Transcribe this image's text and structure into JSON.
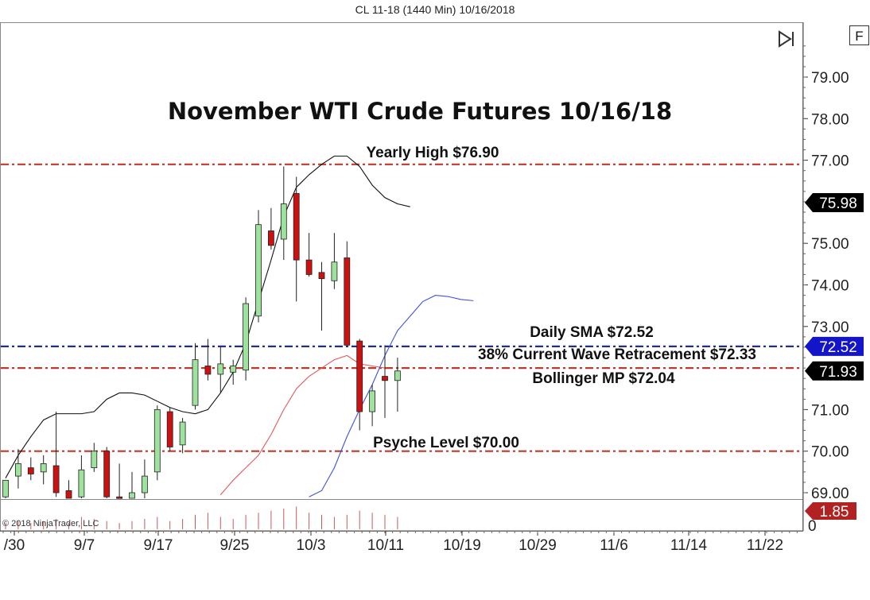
{
  "header": {
    "instrument_title": "CL 11-18 (1440 Min)  10/16/2018"
  },
  "toolbar": {
    "f_button": "F",
    "scroll_end_icon": "skip-to-end-icon"
  },
  "copyright": "© 2018 NinjaTrader, LLC",
  "volume_badge": {
    "text": "1.85",
    "color": "#b22222"
  },
  "volume_axis_label": "0",
  "chart_data": {
    "type": "candlestick",
    "title": "November WTI Crude Futures 10/16/18",
    "ylim": [
      68.8,
      80.2
    ],
    "y_ticks": [
      "79.00",
      "78.00",
      "77.00",
      "75.00",
      "74.00",
      "73.00",
      "71.00",
      "70.00",
      "69.00"
    ],
    "y_tick_values": [
      79,
      78,
      77,
      75,
      74,
      73,
      71,
      70,
      69
    ],
    "x_ticks": [
      "/30",
      "9/7",
      "9/17",
      "9/25",
      "10/3",
      "10/11",
      "10/19",
      "10/29",
      "11/6",
      "11/14",
      "11/22"
    ],
    "candles": [
      {
        "date": "8/30",
        "o": 68.9,
        "h": 69.3,
        "l": 68.6,
        "c": 69.3
      },
      {
        "date": "8/31",
        "o": 69.4,
        "h": 70.05,
        "l": 69.1,
        "c": 69.7
      },
      {
        "date": "9/3",
        "o": 69.6,
        "h": 69.85,
        "l": 69.3,
        "c": 69.45
      },
      {
        "date": "9/4",
        "o": 69.5,
        "h": 69.9,
        "l": 69.2,
        "c": 69.7
      },
      {
        "date": "9/5",
        "o": 69.65,
        "h": 70.95,
        "l": 68.9,
        "c": 69.0
      },
      {
        "date": "9/6",
        "o": 69.05,
        "h": 69.3,
        "l": 68.6,
        "c": 68.75
      },
      {
        "date": "9/10",
        "o": 68.9,
        "h": 69.9,
        "l": 68.8,
        "c": 69.55
      },
      {
        "date": "9/11",
        "o": 69.6,
        "h": 70.2,
        "l": 69.5,
        "c": 70.0
      },
      {
        "date": "9/12",
        "o": 70.0,
        "h": 70.1,
        "l": 68.6,
        "c": 68.9
      },
      {
        "date": "9/13",
        "o": 68.9,
        "h": 69.7,
        "l": 68.5,
        "c": 68.8
      },
      {
        "date": "9/14",
        "o": 68.8,
        "h": 69.5,
        "l": 68.6,
        "c": 69.0
      },
      {
        "date": "9/17",
        "o": 69.0,
        "h": 69.8,
        "l": 68.6,
        "c": 69.4
      },
      {
        "date": "9/18",
        "o": 69.5,
        "h": 71.1,
        "l": 69.3,
        "c": 71.0
      },
      {
        "date": "9/19",
        "o": 70.95,
        "h": 71.05,
        "l": 70.0,
        "c": 70.1
      },
      {
        "date": "9/20",
        "o": 70.15,
        "h": 70.8,
        "l": 69.95,
        "c": 70.7
      },
      {
        "date": "9/21",
        "o": 71.1,
        "h": 72.6,
        "l": 71.0,
        "c": 72.2
      },
      {
        "date": "9/24",
        "o": 72.05,
        "h": 72.7,
        "l": 71.7,
        "c": 71.85
      },
      {
        "date": "9/25",
        "o": 71.85,
        "h": 72.5,
        "l": 71.4,
        "c": 72.1
      },
      {
        "date": "9/26",
        "o": 71.9,
        "h": 72.2,
        "l": 71.6,
        "c": 72.05
      },
      {
        "date": "9/27",
        "o": 71.95,
        "h": 73.7,
        "l": 71.7,
        "c": 73.55
      },
      {
        "date": "9/28",
        "o": 73.25,
        "h": 75.8,
        "l": 73.1,
        "c": 75.45
      },
      {
        "date": "10/1",
        "o": 75.3,
        "h": 75.85,
        "l": 74.85,
        "c": 74.95
      },
      {
        "date": "10/2",
        "o": 75.1,
        "h": 76.85,
        "l": 74.6,
        "c": 75.95
      },
      {
        "date": "10/3",
        "o": 76.2,
        "h": 76.6,
        "l": 73.6,
        "c": 74.6
      },
      {
        "date": "10/4",
        "o": 74.6,
        "h": 75.25,
        "l": 74.2,
        "c": 74.25
      },
      {
        "date": "10/5",
        "o": 74.3,
        "h": 74.55,
        "l": 72.9,
        "c": 74.15
      },
      {
        "date": "10/8",
        "o": 74.1,
        "h": 75.25,
        "l": 73.9,
        "c": 74.55
      },
      {
        "date": "10/9",
        "o": 74.65,
        "h": 75.05,
        "l": 72.55,
        "c": 72.55
      },
      {
        "date": "10/10",
        "o": 72.65,
        "h": 72.7,
        "l": 70.5,
        "c": 70.95
      },
      {
        "date": "10/11",
        "o": 70.95,
        "h": 71.6,
        "l": 70.6,
        "c": 71.45
      },
      {
        "date": "10/12",
        "o": 71.8,
        "h": 72.55,
        "l": 70.8,
        "c": 71.7
      },
      {
        "date": "10/15",
        "o": 71.7,
        "h": 72.25,
        "l": 70.95,
        "c": 71.93
      }
    ],
    "levels": [
      {
        "name": "Yearly High",
        "label": "Yearly High $76.90",
        "value": 76.9,
        "color": "#c0392b"
      },
      {
        "name": "Daily SMA",
        "label": "Daily SMA $72.52",
        "value": 72.52,
        "color": "#1f2f8f"
      },
      {
        "name": "Current Wave Retracement",
        "label": "38% Current Wave Retracement $72.33",
        "value": 72.33,
        "color": "#1f2f8f"
      },
      {
        "name": "Bollinger MP",
        "label": "Bollinger MP $72.04",
        "value": 72.0,
        "color": "#c0392b"
      },
      {
        "name": "Psyche Level",
        "label": "Psyche Level $70.00",
        "value": 70.0,
        "color": "#c0392b"
      }
    ],
    "price_tags": [
      {
        "text": "75.98",
        "value": 75.98,
        "color": "#000000"
      },
      {
        "text": "72.52",
        "value": 72.52,
        "color": "#1414c8"
      },
      {
        "text": "71.93",
        "value": 71.93,
        "color": "#000000"
      }
    ],
    "upper_band": [
      [
        0,
        69.35
      ],
      [
        1,
        69.9
      ],
      [
        2,
        70.35
      ],
      [
        3,
        70.75
      ],
      [
        4,
        70.9
      ],
      [
        5,
        70.9
      ],
      [
        6,
        70.9
      ],
      [
        7,
        70.95
      ],
      [
        8,
        71.25
      ],
      [
        9,
        71.4
      ],
      [
        10,
        71.4
      ],
      [
        11,
        71.35
      ],
      [
        12,
        71.2
      ],
      [
        13,
        71.05
      ],
      [
        14,
        70.95
      ],
      [
        15,
        70.9
      ],
      [
        16,
        71.0
      ],
      [
        17,
        71.4
      ],
      [
        18,
        71.9
      ],
      [
        19,
        72.6
      ],
      [
        20,
        73.6
      ],
      [
        21,
        74.6
      ],
      [
        22,
        75.65
      ],
      [
        23,
        76.35
      ],
      [
        24,
        76.65
      ],
      [
        25,
        76.9
      ],
      [
        26,
        77.1
      ],
      [
        27,
        77.1
      ],
      [
        28,
        76.85
      ],
      [
        29,
        76.4
      ],
      [
        30,
        76.1
      ],
      [
        31,
        75.95
      ],
      [
        32,
        75.88
      ]
    ],
    "lower_band": [
      [
        24,
        68.9
      ],
      [
        25,
        69.05
      ],
      [
        26,
        69.6
      ],
      [
        27,
        70.35
      ],
      [
        28,
        71.0
      ],
      [
        29,
        71.6
      ],
      [
        30,
        72.3
      ],
      [
        31,
        72.9
      ],
      [
        32,
        73.25
      ],
      [
        33,
        73.6
      ],
      [
        34,
        73.75
      ],
      [
        35,
        73.72
      ],
      [
        36,
        73.65
      ],
      [
        37,
        73.62
      ]
    ],
    "middle_band": [
      [
        17,
        68.95
      ],
      [
        18,
        69.3
      ],
      [
        19,
        69.6
      ],
      [
        20,
        69.9
      ],
      [
        21,
        70.4
      ],
      [
        22,
        71.0
      ],
      [
        23,
        71.5
      ],
      [
        24,
        71.8
      ],
      [
        25,
        72.0
      ],
      [
        26,
        72.2
      ],
      [
        27,
        72.3
      ],
      [
        28,
        72.1
      ],
      [
        29,
        72.05
      ],
      [
        30,
        72.0
      ]
    ],
    "volume": [
      3,
      4,
      3,
      4,
      5,
      3,
      6,
      5,
      4,
      3,
      4,
      5,
      6,
      4,
      5,
      7,
      8,
      6,
      5,
      7,
      8,
      9,
      10,
      11,
      8,
      7,
      6,
      7,
      9,
      8,
      7,
      6
    ]
  }
}
